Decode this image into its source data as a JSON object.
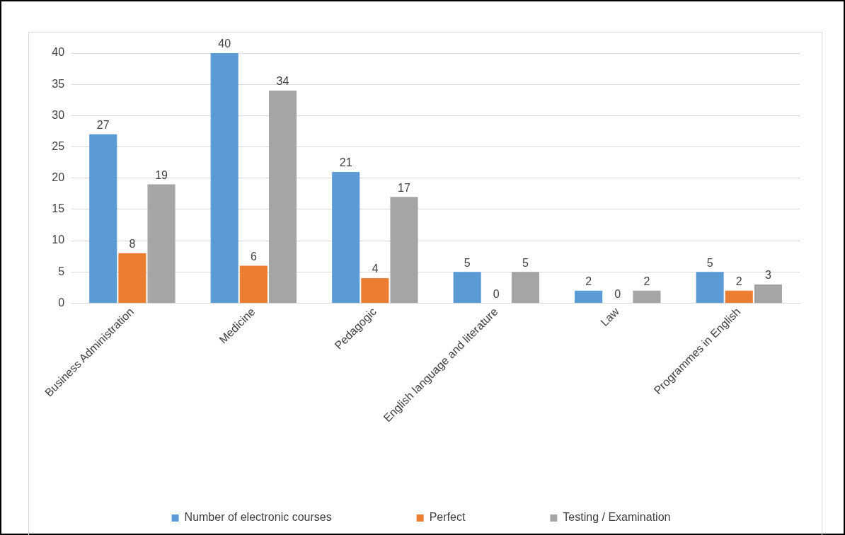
{
  "chart_data": {
    "type": "bar",
    "categories": [
      "Business Administration",
      "Medicine",
      "Pedagogic",
      "English language and literature",
      "Law",
      "Programmes in English"
    ],
    "series": [
      {
        "name": "Number of electronic courses",
        "color": "#5b9bd5",
        "values": [
          27,
          40,
          21,
          5,
          2,
          5
        ]
      },
      {
        "name": "Perfect",
        "color": "#ed7d31",
        "values": [
          8,
          6,
          4,
          0,
          0,
          2
        ]
      },
      {
        "name": "Testing / Examination",
        "color": "#a5a5a5",
        "values": [
          19,
          34,
          17,
          5,
          2,
          3
        ]
      }
    ],
    "ylim": [
      0,
      40
    ],
    "yticks": [
      0,
      5,
      10,
      15,
      20,
      25,
      30,
      35,
      40
    ],
    "grid": "y",
    "legend": "bottom",
    "data_labels": true
  }
}
